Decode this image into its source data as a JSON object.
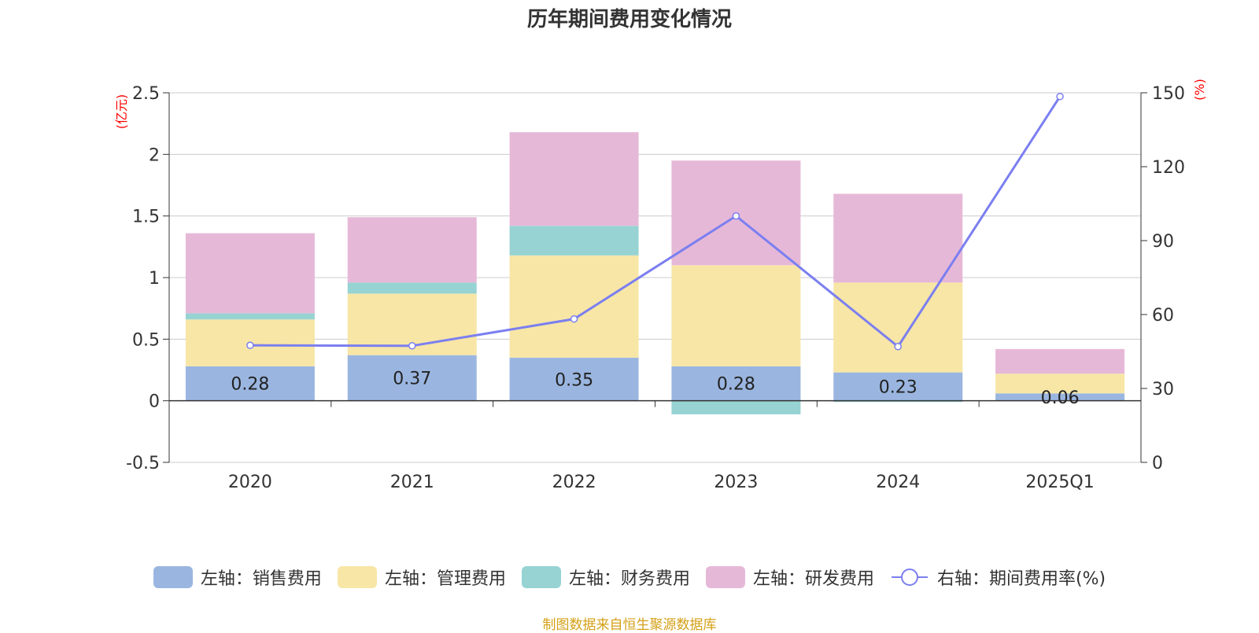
{
  "chart_data": {
    "type": "bar",
    "title": "历年期间费用变化情况",
    "categories": [
      "2020",
      "2021",
      "2022",
      "2023",
      "2024",
      "2025Q1"
    ],
    "left_axis": {
      "unit": "(亿元)",
      "ylim": [
        -0.5,
        2.5
      ],
      "ticks": [
        "-0.5",
        "0",
        "0.5",
        "1",
        "1.5",
        "2",
        "2.5"
      ],
      "tick_values": [
        -0.5,
        0,
        0.5,
        1,
        1.5,
        2,
        2.5
      ]
    },
    "right_axis": {
      "unit": "(%)",
      "ylim": [
        0,
        150
      ],
      "ticks": [
        "0",
        "30",
        "60",
        "90",
        "120",
        "150"
      ],
      "tick_values": [
        0,
        30,
        60,
        90,
        120,
        150
      ]
    },
    "series": [
      {
        "name": "左轴：销售费用",
        "axis": "left",
        "color": "#9ab6e0",
        "values": [
          0.28,
          0.37,
          0.35,
          0.28,
          0.23,
          0.06
        ],
        "labels": [
          "0.28",
          "0.37",
          "0.35",
          "0.28",
          "0.23",
          "0.06"
        ]
      },
      {
        "name": "左轴：管理费用",
        "axis": "left",
        "color": "#f7e6a6",
        "values": [
          0.38,
          0.5,
          0.83,
          0.82,
          0.73,
          0.16
        ]
      },
      {
        "name": "左轴：财务费用",
        "axis": "left",
        "color": "#97d3d3",
        "values": [
          0.05,
          0.09,
          0.24,
          -0.11,
          -0.01,
          0.0
        ]
      },
      {
        "name": "左轴：研发费用",
        "axis": "left",
        "color": "#e6b8d8",
        "values": [
          0.65,
          0.53,
          0.76,
          0.85,
          0.72,
          0.2
        ]
      },
      {
        "name": "右轴：期间费用率(%)",
        "axis": "right",
        "type": "line",
        "color": "#7b7ff0",
        "values": [
          47.5,
          47.3,
          58.2,
          100.0,
          47.0,
          148.5
        ]
      }
    ]
  },
  "source_text": "制图数据来自恒生聚源数据库"
}
